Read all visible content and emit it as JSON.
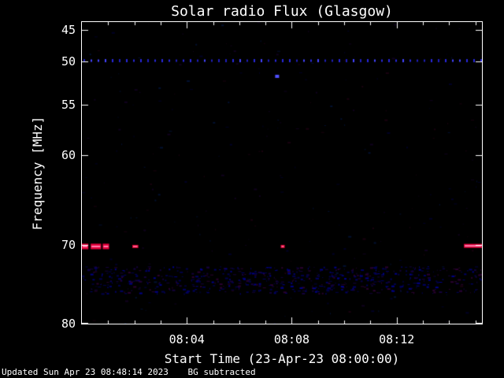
{
  "footer": {
    "updated": "Updated Sun Apr 23 08:48:14 2023",
    "bg": "BG subtracted"
  },
  "chart_data": {
    "type": "heatmap",
    "title": "Solar radio Flux (Glasgow)",
    "xlabel": "Start Time (23-Apr-23 08:00:00)",
    "ylabel": "Frequency [MHz]",
    "background": "#000000",
    "axis_color": "#ffffff",
    "ylim": [
      45,
      80
    ],
    "x_axis": {
      "start": "08:00:00",
      "minutes_total": 15.25,
      "major_ticks": [
        {
          "label": "08:04",
          "minute": 4
        },
        {
          "label": "08:08",
          "minute": 8
        },
        {
          "label": "08:12",
          "minute": 12
        }
      ]
    },
    "y_axis": {
      "unit": "MHz",
      "ticks": [
        {
          "value": "45",
          "frac": 0.026
        },
        {
          "value": "50",
          "frac": 0.13
        },
        {
          "value": "55",
          "frac": 0.274
        },
        {
          "value": "60",
          "frac": 0.441
        },
        {
          "value": "70",
          "frac": 0.739
        },
        {
          "value": "80",
          "frac": 1.0
        }
      ]
    },
    "features": [
      {
        "type": "speckle",
        "desc": "faint background noise",
        "count": 260,
        "colors": [
          "#10001e",
          "#001030",
          "#1a0010",
          "#000026"
        ],
        "seed": 13
      },
      {
        "type": "noise_band",
        "desc": "dark blue interference band ~74-77 MHz",
        "y0_frac": 0.81,
        "y1_frac": 0.9,
        "count": 650,
        "colors": [
          "#000066",
          "#00004c",
          "#14003c",
          "#2a0030",
          "#000088"
        ],
        "seed": 7
      },
      {
        "type": "dotted_hline",
        "desc": "blue carrier line ~49.5 MHz across full duration",
        "freq_mhz": 49.5,
        "y_frac": 0.128,
        "spacing_px": 9,
        "dot_w": 2,
        "colors": [
          "#2828dd",
          "#4343ff",
          "#1f1fbb"
        ],
        "seed": 5
      },
      {
        "type": "dot",
        "desc": "isolated blue point ~51.5 MHz near 08:07",
        "x_frac": 0.488,
        "y_frac": 0.18,
        "w": 5,
        "h": 4,
        "color": "#5050ff"
      },
      {
        "type": "burst",
        "desc": "red emission ~70.5 MHz at 08:00-08:01",
        "freq_mhz": 70.5,
        "y_frac": 0.744,
        "h": 7,
        "segments": [
          [
            0.0,
            0.016
          ],
          [
            0.022,
            0.048
          ],
          [
            0.052,
            0.068
          ]
        ],
        "color": "#e8003c",
        "core": "#ff7fae"
      },
      {
        "type": "burst",
        "desc": "red mark ~70.5 MHz near 08:02",
        "freq_mhz": 70.5,
        "y_frac": 0.744,
        "h": 4,
        "segments": [
          [
            0.126,
            0.141
          ]
        ],
        "color": "#d80030",
        "core": "#ff6090"
      },
      {
        "type": "burst",
        "desc": "red mark ~70.5 MHz near 08:07:30",
        "freq_mhz": 70.5,
        "y_frac": 0.744,
        "h": 4,
        "segments": [
          [
            0.497,
            0.507
          ]
        ],
        "color": "#d80030",
        "core": "#ff6090"
      },
      {
        "type": "burst",
        "desc": "red emission ~70.5 MHz at right edge ~08:15",
        "freq_mhz": 70.5,
        "y_frac": 0.742,
        "h": 5,
        "segments": [
          [
            0.955,
            1.0
          ]
        ],
        "color": "#e8003c",
        "core": "#ff7fae"
      }
    ]
  }
}
